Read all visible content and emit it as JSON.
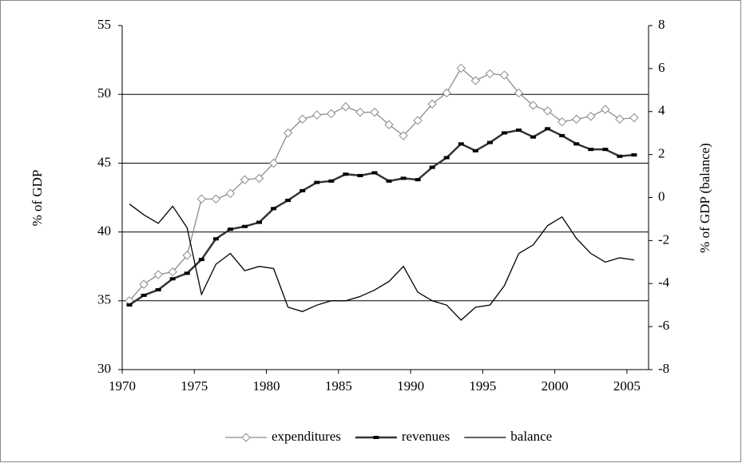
{
  "chart_data": {
    "type": "line",
    "ylabel": "% of GDP",
    "y2label": "% of GDP (balance)",
    "x": [
      1970.5,
      1971.5,
      1972.5,
      1973.5,
      1974.5,
      1975.5,
      1976.5,
      1977.5,
      1978.5,
      1979.5,
      1980.5,
      1981.5,
      1982.5,
      1983.5,
      1984.5,
      1985.5,
      1986.5,
      1987.5,
      1988.5,
      1989.5,
      1990.5,
      1991.5,
      1992.5,
      1993.5,
      1994.5,
      1995.5,
      1996.5,
      1997.5,
      1998.5,
      1999.5,
      2000.5,
      2001.5,
      2002.5,
      2003.5,
      2004.5,
      2005.5
    ],
    "xlim": [
      1970,
      2006.5
    ],
    "xticks": [
      1970,
      1975,
      1980,
      1985,
      1990,
      1995,
      2000,
      2005
    ],
    "ylim": [
      30,
      55
    ],
    "yticks": [
      30,
      35,
      40,
      45,
      50,
      55
    ],
    "y2lim": [
      -8,
      8
    ],
    "y2ticks": [
      -8,
      -6,
      -4,
      -2,
      0,
      2,
      4,
      6,
      8
    ],
    "grid": true,
    "legend": "bottom",
    "series": [
      {
        "name": "expenditures",
        "color": "#8c8c8c",
        "marker": "diamond",
        "values": [
          35.0,
          36.2,
          36.9,
          37.1,
          38.3,
          42.4,
          42.4,
          42.8,
          43.8,
          43.9,
          45.0,
          47.2,
          48.2,
          48.5,
          48.6,
          49.1,
          48.7,
          48.7,
          47.8,
          47.0,
          48.1,
          49.3,
          50.1,
          51.9,
          51.0,
          51.5,
          51.4,
          50.1,
          49.2,
          48.8,
          48.0,
          48.2,
          48.4,
          48.9,
          48.2,
          48.3
        ]
      },
      {
        "name": "revenues",
        "color": "#333333",
        "marker": "dash",
        "values": [
          34.7,
          35.4,
          35.8,
          36.6,
          37.0,
          38.0,
          39.5,
          40.2,
          40.4,
          40.7,
          41.7,
          42.3,
          43.0,
          43.6,
          43.7,
          44.2,
          44.1,
          44.3,
          43.7,
          43.9,
          43.8,
          44.7,
          45.4,
          46.4,
          45.9,
          46.5,
          47.2,
          47.4,
          46.9,
          47.5,
          47.0,
          46.4,
          46.0,
          46.0,
          45.5,
          45.6
        ]
      },
      {
        "name": "balance",
        "color": "#000000",
        "axis": "y2",
        "values": [
          -0.3,
          -0.8,
          -1.2,
          -0.4,
          -1.4,
          -4.5,
          -3.1,
          -2.6,
          -3.4,
          -3.2,
          -3.3,
          -5.1,
          -5.3,
          -5.0,
          -4.8,
          -4.8,
          -4.6,
          -4.3,
          -3.9,
          -3.2,
          -4.4,
          -4.8,
          -5.0,
          -5.7,
          -5.1,
          -5.0,
          -4.1,
          -2.6,
          -2.2,
          -1.3,
          -0.9,
          -1.9,
          -2.6,
          -3.0,
          -2.8,
          -2.9
        ]
      }
    ]
  }
}
